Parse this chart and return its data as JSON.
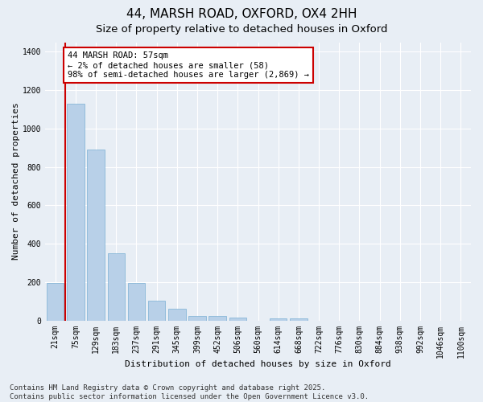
{
  "title_line1": "44, MARSH ROAD, OXFORD, OX4 2HH",
  "title_line2": "Size of property relative to detached houses in Oxford",
  "xlabel": "Distribution of detached houses by size in Oxford",
  "ylabel": "Number of detached properties",
  "categories": [
    "21sqm",
    "75sqm",
    "129sqm",
    "183sqm",
    "237sqm",
    "291sqm",
    "345sqm",
    "399sqm",
    "452sqm",
    "506sqm",
    "560sqm",
    "614sqm",
    "668sqm",
    "722sqm",
    "776sqm",
    "830sqm",
    "884sqm",
    "938sqm",
    "992sqm",
    "1046sqm",
    "1100sqm"
  ],
  "values": [
    195,
    1130,
    890,
    350,
    195,
    105,
    62,
    25,
    22,
    15,
    0,
    10,
    10,
    0,
    0,
    0,
    0,
    0,
    0,
    0,
    0
  ],
  "bar_color": "#b8d0e8",
  "bar_edge_color": "#7aafd4",
  "annotation_box_text": "44 MARSH ROAD: 57sqm\n← 2% of detached houses are smaller (58)\n98% of semi-detached houses are larger (2,869) →",
  "annotation_box_color": "#ffffff",
  "annotation_box_edge_color": "#cc0000",
  "vline_color": "#cc0000",
  "ylim": [
    0,
    1450
  ],
  "yticks": [
    0,
    200,
    400,
    600,
    800,
    1000,
    1200,
    1400
  ],
  "bg_color": "#e8eef5",
  "grid_color": "#ffffff",
  "footnote": "Contains HM Land Registry data © Crown copyright and database right 2025.\nContains public sector information licensed under the Open Government Licence v3.0.",
  "title_fontsize": 11,
  "subtitle_fontsize": 9.5,
  "label_fontsize": 8,
  "tick_fontsize": 7,
  "footnote_fontsize": 6.5,
  "ann_fontsize": 7.5
}
